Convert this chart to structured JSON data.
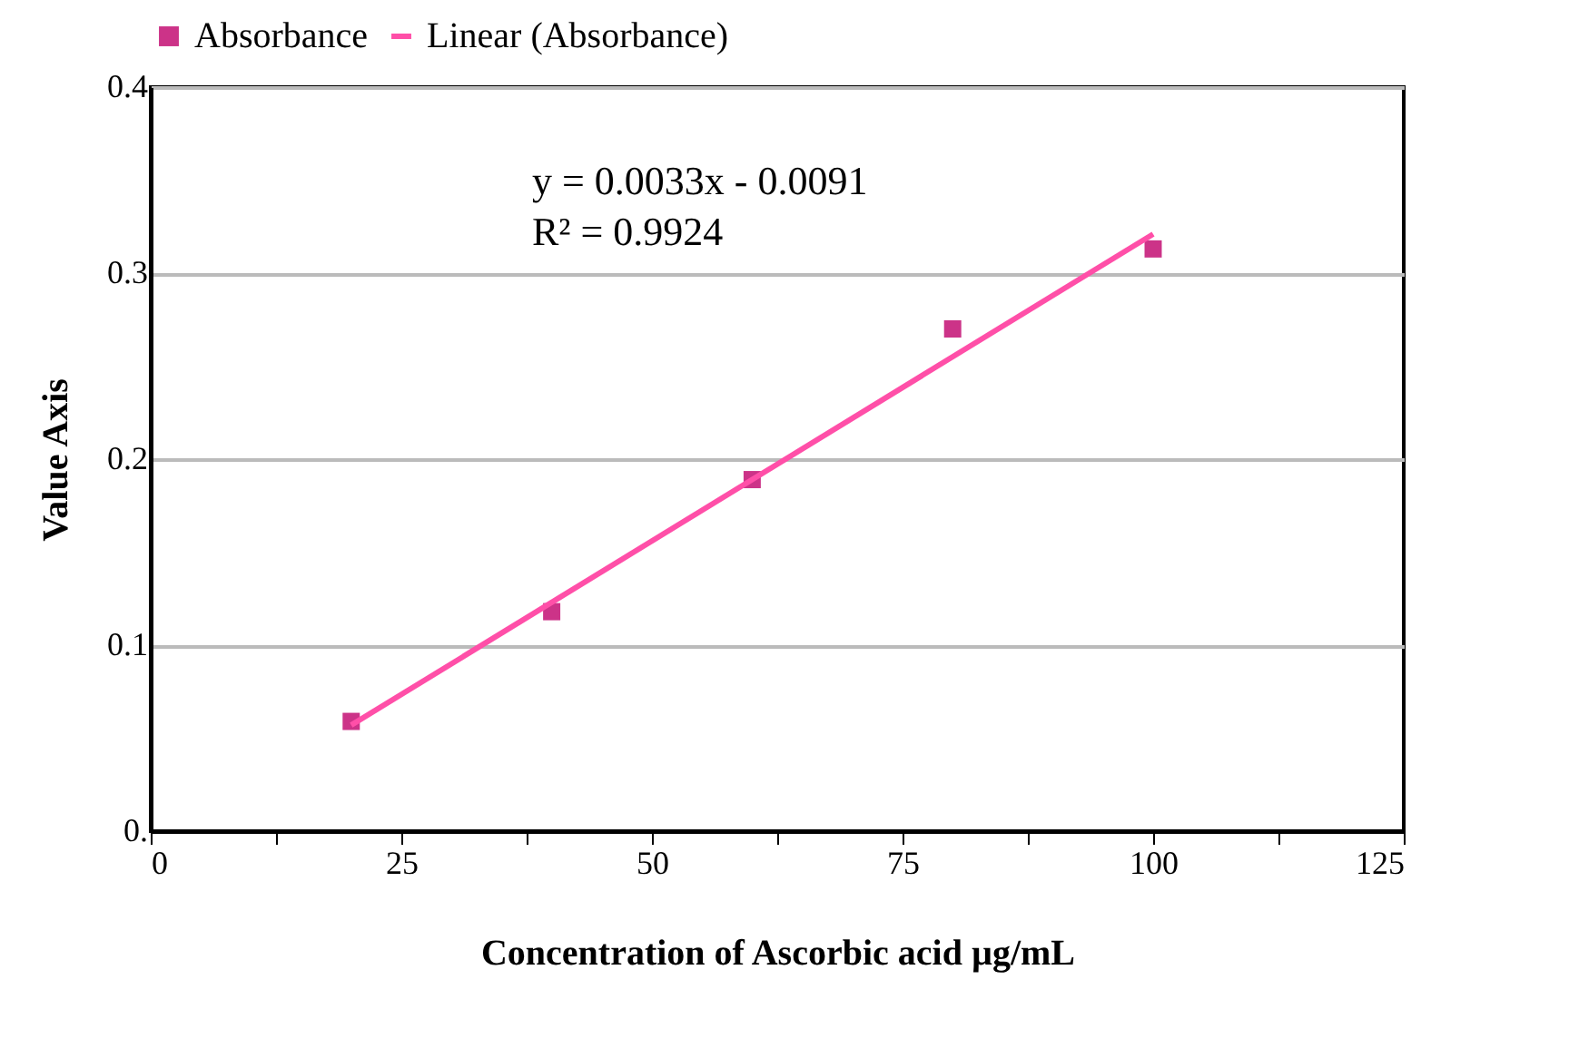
{
  "chart_data": {
    "type": "scatter",
    "xlabel": "Concentration of Ascorbic acid µg/mL",
    "ylabel": "Value Axis",
    "series": [
      {
        "name": "Absorbance",
        "color": "#cc3388",
        "marker": "square",
        "x": [
          20,
          40,
          60,
          80,
          100
        ],
        "values": [
          0.059,
          0.118,
          0.189,
          0.27,
          0.313
        ]
      },
      {
        "name": "Linear (Absorbance)",
        "type": "line",
        "color": "#ff4fa8",
        "marker": "none",
        "line_style": "solid",
        "x": [
          20,
          100
        ],
        "values": [
          0.057,
          0.321
        ]
      }
    ],
    "xlim": [
      0,
      125
    ],
    "xticks": [
      0,
      {
        "value": 12.5,
        "label": null
      },
      25,
      {
        "value": 37.5,
        "label": null
      },
      50,
      {
        "value": 62.5,
        "label": null
      },
      75,
      {
        "value": 87.5,
        "label": null
      },
      100,
      {
        "value": 112.5,
        "label": null
      },
      125
    ],
    "ylim": [
      0,
      0.4
    ],
    "yticks": [
      {
        "value": 0,
        "label": "0."
      },
      0.1,
      0.2,
      0.3,
      0.4
    ],
    "grid": "y",
    "legend": "top",
    "annotations": [
      "y = 0.0033x - 0.0091",
      "R² = 0.9924"
    ]
  }
}
